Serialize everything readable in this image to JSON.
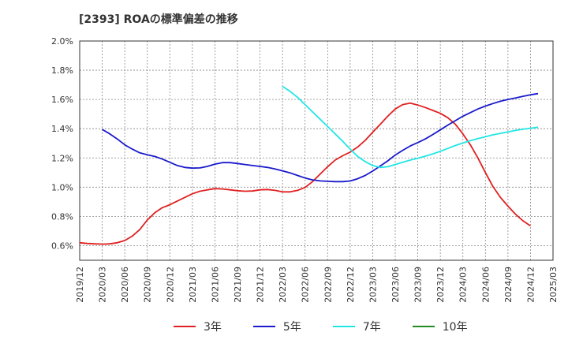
{
  "chart_data": {
    "type": "line",
    "title": "[2393]  ROAの標準偏差の推移",
    "xlabel": "",
    "ylabel": "",
    "ylim": [
      0.5,
      2.0
    ],
    "y_ticks": [
      "2.0%",
      "1.8%",
      "1.6%",
      "1.4%",
      "1.2%",
      "1.0%",
      "0.8%",
      "0.6%"
    ],
    "y_tick_values": [
      2.0,
      1.8,
      1.6,
      1.4,
      1.2,
      1.0,
      0.8,
      0.6
    ],
    "x_ticks": [
      "2019/12",
      "2020/03",
      "2020/06",
      "2020/09",
      "2020/12",
      "2021/03",
      "2021/06",
      "2021/09",
      "2021/12",
      "2022/03",
      "2022/06",
      "2022/09",
      "2022/12",
      "2023/03",
      "2023/06",
      "2023/09",
      "2023/12",
      "2024/03",
      "2024/06",
      "2024/09",
      "2024/12",
      "2025/03"
    ],
    "grid": true,
    "legend_position": "bottom",
    "series": [
      {
        "name": "3年",
        "color": "#e02020",
        "points": [
          [
            "2019/12",
            0.62
          ],
          [
            "2020/01",
            0.615
          ],
          [
            "2020/02",
            0.612
          ],
          [
            "2020/03",
            0.61
          ],
          [
            "2020/04",
            0.612
          ],
          [
            "2020/05",
            0.62
          ],
          [
            "2020/06",
            0.635
          ],
          [
            "2020/07",
            0.665
          ],
          [
            "2020/08",
            0.71
          ],
          [
            "2020/09",
            0.775
          ],
          [
            "2020/10",
            0.825
          ],
          [
            "2020/11",
            0.86
          ],
          [
            "2020/12",
            0.88
          ],
          [
            "2021/01",
            0.905
          ],
          [
            "2021/02",
            0.93
          ],
          [
            "2021/03",
            0.955
          ],
          [
            "2021/04",
            0.972
          ],
          [
            "2021/05",
            0.982
          ],
          [
            "2021/06",
            0.99
          ],
          [
            "2021/07",
            0.988
          ],
          [
            "2021/08",
            0.982
          ],
          [
            "2021/09",
            0.976
          ],
          [
            "2021/10",
            0.972
          ],
          [
            "2021/11",
            0.974
          ],
          [
            "2021/12",
            0.982
          ],
          [
            "2022/01",
            0.984
          ],
          [
            "2022/02",
            0.978
          ],
          [
            "2022/03",
            0.968
          ],
          [
            "2022/04",
            0.968
          ],
          [
            "2022/05",
            0.978
          ],
          [
            "2022/06",
            0.998
          ],
          [
            "2022/07",
            1.038
          ],
          [
            "2022/08",
            1.09
          ],
          [
            "2022/09",
            1.14
          ],
          [
            "2022/10",
            1.185
          ],
          [
            "2022/11",
            1.215
          ],
          [
            "2022/12",
            1.24
          ],
          [
            "2023/01",
            1.275
          ],
          [
            "2023/02",
            1.32
          ],
          [
            "2023/03",
            1.375
          ],
          [
            "2023/04",
            1.43
          ],
          [
            "2023/05",
            1.485
          ],
          [
            "2023/06",
            1.535
          ],
          [
            "2023/07",
            1.565
          ],
          [
            "2023/08",
            1.575
          ],
          [
            "2023/09",
            1.562
          ],
          [
            "2023/10",
            1.545
          ],
          [
            "2023/11",
            1.525
          ],
          [
            "2023/12",
            1.505
          ],
          [
            "2024/01",
            1.475
          ],
          [
            "2024/02",
            1.43
          ],
          [
            "2024/03",
            1.365
          ],
          [
            "2024/04",
            1.29
          ],
          [
            "2024/05",
            1.2
          ],
          [
            "2024/06",
            1.1
          ],
          [
            "2024/07",
            1.005
          ],
          [
            "2024/08",
            0.93
          ],
          [
            "2024/09",
            0.87
          ],
          [
            "2024/10",
            0.815
          ],
          [
            "2024/11",
            0.77
          ],
          [
            "2024/12",
            0.735
          ]
        ]
      },
      {
        "name": "5年",
        "color": "#1a1acc",
        "points": [
          [
            "2020/03",
            1.395
          ],
          [
            "2020/04",
            1.365
          ],
          [
            "2020/05",
            1.33
          ],
          [
            "2020/06",
            1.29
          ],
          [
            "2020/07",
            1.26
          ],
          [
            "2020/08",
            1.235
          ],
          [
            "2020/09",
            1.222
          ],
          [
            "2020/10",
            1.21
          ],
          [
            "2020/11",
            1.192
          ],
          [
            "2020/12",
            1.17
          ],
          [
            "2021/01",
            1.148
          ],
          [
            "2021/02",
            1.135
          ],
          [
            "2021/03",
            1.13
          ],
          [
            "2021/04",
            1.132
          ],
          [
            "2021/05",
            1.142
          ],
          [
            "2021/06",
            1.158
          ],
          [
            "2021/07",
            1.168
          ],
          [
            "2021/08",
            1.168
          ],
          [
            "2021/09",
            1.162
          ],
          [
            "2021/10",
            1.155
          ],
          [
            "2021/11",
            1.148
          ],
          [
            "2021/12",
            1.142
          ],
          [
            "2022/01",
            1.135
          ],
          [
            "2022/02",
            1.125
          ],
          [
            "2022/03",
            1.112
          ],
          [
            "2022/04",
            1.098
          ],
          [
            "2022/05",
            1.08
          ],
          [
            "2022/06",
            1.063
          ],
          [
            "2022/07",
            1.05
          ],
          [
            "2022/08",
            1.043
          ],
          [
            "2022/09",
            1.04
          ],
          [
            "2022/10",
            1.038
          ],
          [
            "2022/11",
            1.038
          ],
          [
            "2022/12",
            1.042
          ],
          [
            "2023/01",
            1.058
          ],
          [
            "2023/02",
            1.08
          ],
          [
            "2023/03",
            1.11
          ],
          [
            "2023/04",
            1.145
          ],
          [
            "2023/05",
            1.18
          ],
          [
            "2023/06",
            1.22
          ],
          [
            "2023/07",
            1.252
          ],
          [
            "2023/08",
            1.282
          ],
          [
            "2023/09",
            1.305
          ],
          [
            "2023/10",
            1.33
          ],
          [
            "2023/11",
            1.36
          ],
          [
            "2023/12",
            1.392
          ],
          [
            "2024/01",
            1.425
          ],
          [
            "2024/02",
            1.455
          ],
          [
            "2024/03",
            1.485
          ],
          [
            "2024/04",
            1.51
          ],
          [
            "2024/05",
            1.535
          ],
          [
            "2024/06",
            1.555
          ],
          [
            "2024/07",
            1.572
          ],
          [
            "2024/08",
            1.588
          ],
          [
            "2024/09",
            1.6
          ],
          [
            "2024/10",
            1.61
          ],
          [
            "2024/11",
            1.622
          ],
          [
            "2024/12",
            1.632
          ],
          [
            "2025/01",
            1.64
          ]
        ]
      },
      {
        "name": "7年",
        "color": "#22e6e6",
        "points": [
          [
            "2022/03",
            1.69
          ],
          [
            "2022/04",
            1.655
          ],
          [
            "2022/05",
            1.615
          ],
          [
            "2022/06",
            1.565
          ],
          [
            "2022/07",
            1.515
          ],
          [
            "2022/08",
            1.465
          ],
          [
            "2022/09",
            1.415
          ],
          [
            "2022/10",
            1.365
          ],
          [
            "2022/11",
            1.315
          ],
          [
            "2022/12",
            1.26
          ],
          [
            "2023/01",
            1.21
          ],
          [
            "2023/02",
            1.175
          ],
          [
            "2023/03",
            1.148
          ],
          [
            "2023/04",
            1.135
          ],
          [
            "2023/05",
            1.14
          ],
          [
            "2023/06",
            1.155
          ],
          [
            "2023/07",
            1.17
          ],
          [
            "2023/08",
            1.185
          ],
          [
            "2023/09",
            1.198
          ],
          [
            "2023/10",
            1.212
          ],
          [
            "2023/11",
            1.228
          ],
          [
            "2023/12",
            1.245
          ],
          [
            "2024/01",
            1.265
          ],
          [
            "2024/02",
            1.285
          ],
          [
            "2024/03",
            1.302
          ],
          [
            "2024/04",
            1.318
          ],
          [
            "2024/05",
            1.332
          ],
          [
            "2024/06",
            1.345
          ],
          [
            "2024/07",
            1.358
          ],
          [
            "2024/08",
            1.368
          ],
          [
            "2024/09",
            1.378
          ],
          [
            "2024/10",
            1.388
          ],
          [
            "2024/11",
            1.396
          ],
          [
            "2024/12",
            1.403
          ],
          [
            "2025/01",
            1.41
          ]
        ]
      },
      {
        "name": "10年",
        "color": "#228b22",
        "points": []
      }
    ]
  }
}
